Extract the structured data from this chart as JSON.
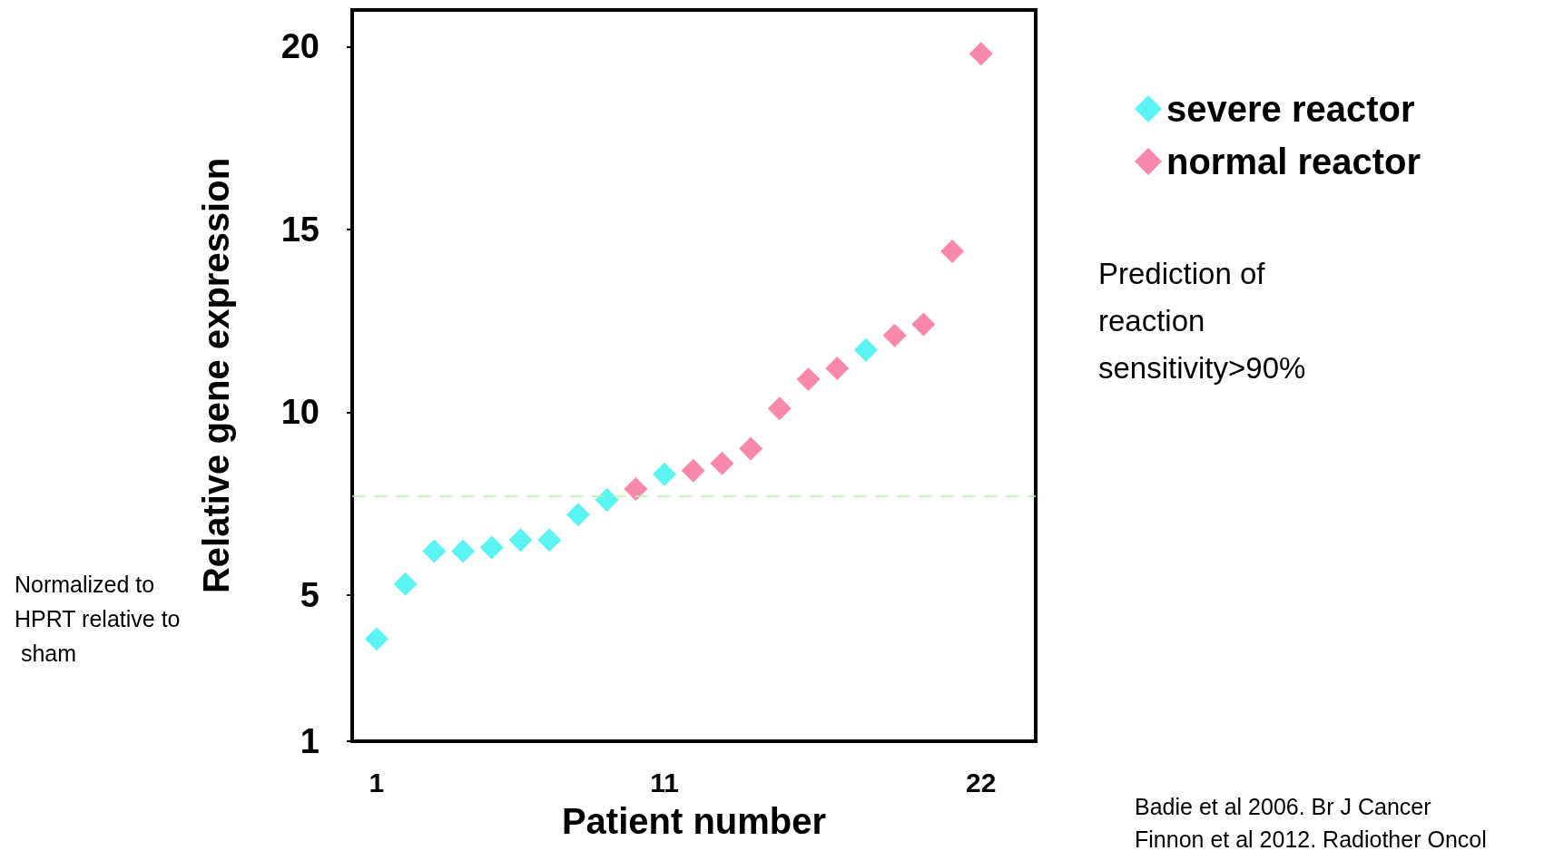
{
  "chart_data": {
    "type": "scatter",
    "xlabel": "Patient number",
    "ylabel": "Relative gene expression",
    "xlim": [
      0.15,
      23.9
    ],
    "xticks": [
      1,
      11,
      22
    ],
    "ylim": [
      1,
      21
    ],
    "yticks": [
      1,
      5,
      10,
      15,
      20
    ],
    "grid": false,
    "legend": "top right",
    "marker": "diamond",
    "series": [
      {
        "name": "severe reactor",
        "color": "#33f0f0",
        "x": [
          1,
          2,
          3,
          4,
          5,
          6,
          7,
          8,
          9,
          11,
          18
        ],
        "values": [
          3.8,
          5.3,
          6.2,
          6.2,
          6.3,
          6.5,
          6.5,
          7.2,
          7.6,
          8.3,
          11.7
        ]
      },
      {
        "name": "normal reactor",
        "color": "#f76a95",
        "x": [
          10,
          12,
          13,
          14,
          15,
          16,
          17,
          19,
          20,
          21,
          22
        ],
        "values": [
          7.9,
          8.4,
          8.6,
          9.0,
          10.1,
          10.9,
          11.2,
          12.1,
          12.4,
          14.4,
          19.8
        ]
      }
    ],
    "ref_lines": [
      {
        "axis": "y",
        "value": 7.7,
        "color": "#b8f0a8",
        "line_style": "dashed"
      }
    ],
    "annotations": [
      "Normalized to HPRT relative to sham",
      "Prediction of reaction sensitivity>90%",
      "Badie et al 2006. Br J Cancer",
      "Finnon et al 2012. Radiother Oncol"
    ]
  }
}
